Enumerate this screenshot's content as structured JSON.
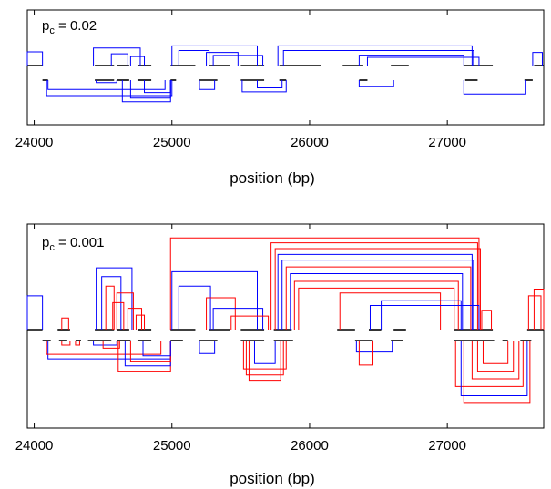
{
  "chart_data": [
    {
      "type": "arc-diagram",
      "annotation": {
        "base": "p",
        "sub": "c",
        "text": " = 0.02"
      },
      "xlabel": "position (bp)",
      "xlim": [
        23950,
        27700
      ],
      "xticks": [
        24000,
        25000,
        26000,
        27000
      ],
      "xtick_labels": [
        "24000",
        "25000",
        "26000",
        "27000"
      ],
      "colors": {
        "blue": "#0000ff",
        "red": "#ff0000",
        "axis": "#000000"
      },
      "upper_fragments": [
        [
          23950,
          24060
        ],
        [
          24440,
          24580
        ],
        [
          24600,
          24690
        ],
        [
          24750,
          24850
        ],
        [
          24990,
          25170
        ],
        [
          25270,
          25420
        ],
        [
          25500,
          25670
        ],
        [
          25780,
          26080
        ],
        [
          26240,
          26390
        ],
        [
          26590,
          26720
        ],
        [
          27120,
          27330
        ],
        [
          27630,
          27700
        ]
      ],
      "lower_fragments": [
        [
          24060,
          24100
        ],
        [
          24440,
          24580
        ],
        [
          24600,
          24690
        ],
        [
          24750,
          24850
        ],
        [
          24990,
          25030
        ],
        [
          25200,
          25330
        ],
        [
          25500,
          25670
        ],
        [
          25780,
          25830
        ],
        [
          26360,
          26420
        ],
        [
          27130,
          27220
        ],
        [
          27560,
          27620
        ]
      ],
      "upper_arcs": [
        [
          23950,
          24060,
          0.5,
          "blue"
        ],
        [
          24430,
          24770,
          0.36,
          "blue"
        ],
        [
          24560,
          24680,
          0.57,
          "blue"
        ],
        [
          24700,
          24800,
          0.67,
          "blue"
        ],
        [
          25000,
          25620,
          0.28,
          "blue"
        ],
        [
          25050,
          25270,
          0.45,
          "blue"
        ],
        [
          25250,
          25480,
          0.52,
          "blue"
        ],
        [
          25300,
          25660,
          0.63,
          "blue"
        ],
        [
          25770,
          27180,
          0.28,
          "blue"
        ],
        [
          25810,
          27190,
          0.45,
          "blue"
        ],
        [
          26360,
          27120,
          0.62,
          "blue"
        ],
        [
          26420,
          27230,
          0.7,
          "blue"
        ],
        [
          27620,
          27690,
          0.52,
          "blue"
        ]
      ],
      "lower_arcs": [
        [
          24100,
          24950,
          0.3,
          "blue"
        ],
        [
          24090,
          25000,
          0.5,
          "blue"
        ],
        [
          24450,
          24600,
          0.08,
          "blue"
        ],
        [
          24640,
          24990,
          0.7,
          "blue"
        ],
        [
          24700,
          24990,
          0.58,
          "blue"
        ],
        [
          24800,
          24990,
          0.4,
          "blue"
        ],
        [
          25200,
          25310,
          0.3,
          "blue"
        ],
        [
          25510,
          25830,
          0.38,
          "blue"
        ],
        [
          25620,
          25800,
          0.25,
          "blue"
        ],
        [
          26360,
          26610,
          0.2,
          "blue"
        ],
        [
          27120,
          27570,
          0.45,
          "blue"
        ]
      ]
    },
    {
      "type": "arc-diagram",
      "annotation": {
        "base": "p",
        "sub": "c",
        "text": " = 0.001"
      },
      "xlabel": "position (bp)",
      "xlim": [
        23950,
        27700
      ],
      "xticks": [
        24000,
        25000,
        26000,
        27000
      ],
      "xtick_labels": [
        "24000",
        "25000",
        "26000",
        "27000"
      ],
      "colors": {
        "blue": "#0000ff",
        "red": "#ff0000",
        "axis": "#000000"
      },
      "upper_fragments": [
        [
          23950,
          24060
        ],
        [
          24170,
          24260
        ],
        [
          24440,
          24580
        ],
        [
          24600,
          24690
        ],
        [
          24750,
          24850
        ],
        [
          24990,
          25170
        ],
        [
          25270,
          25420
        ],
        [
          25500,
          25670
        ],
        [
          25740,
          25870
        ],
        [
          26200,
          26330
        ],
        [
          26430,
          26520
        ],
        [
          26610,
          26700
        ],
        [
          27050,
          27330
        ],
        [
          27580,
          27700
        ]
      ],
      "lower_fragments": [
        [
          24060,
          24120
        ],
        [
          24180,
          24240
        ],
        [
          24300,
          24340
        ],
        [
          24390,
          24560
        ],
        [
          24600,
          24700
        ],
        [
          24750,
          24850
        ],
        [
          24990,
          25080
        ],
        [
          25200,
          25330
        ],
        [
          25500,
          25670
        ],
        [
          25740,
          25880
        ],
        [
          26330,
          26460
        ],
        [
          26590,
          26680
        ],
        [
          27050,
          27340
        ],
        [
          27400,
          27440
        ],
        [
          27530,
          27610
        ]
      ],
      "upper_arcs": [
        [
          23950,
          24060,
          0.65,
          "blue"
        ],
        [
          24200,
          24250,
          0.88,
          "red"
        ],
        [
          24450,
          24710,
          0.36,
          "blue"
        ],
        [
          24490,
          24630,
          0.45,
          "blue"
        ],
        [
          24520,
          24580,
          0.55,
          "red"
        ],
        [
          24570,
          24650,
          0.72,
          "red"
        ],
        [
          24600,
          24720,
          0.62,
          "red"
        ],
        [
          24680,
          24780,
          0.78,
          "red"
        ],
        [
          24740,
          24800,
          0.85,
          "red"
        ],
        [
          24990,
          27230,
          0.05,
          "red"
        ],
        [
          25000,
          25620,
          0.4,
          "blue"
        ],
        [
          25050,
          25280,
          0.55,
          "blue"
        ],
        [
          25250,
          25460,
          0.67,
          "red"
        ],
        [
          25300,
          25660,
          0.78,
          "blue"
        ],
        [
          25430,
          25700,
          0.86,
          "red"
        ],
        [
          25720,
          27220,
          0.1,
          "red"
        ],
        [
          25750,
          27240,
          0.16,
          "red"
        ],
        [
          25770,
          27180,
          0.22,
          "blue"
        ],
        [
          25800,
          27190,
          0.28,
          "blue"
        ],
        [
          25830,
          27170,
          0.35,
          "red"
        ],
        [
          25860,
          27110,
          0.42,
          "blue"
        ],
        [
          25890,
          27080,
          0.5,
          "red"
        ],
        [
          25920,
          27050,
          0.57,
          "red"
        ],
        [
          26220,
          26950,
          0.62,
          "red"
        ],
        [
          26520,
          27100,
          0.7,
          "blue"
        ],
        [
          26440,
          27230,
          0.75,
          "blue"
        ],
        [
          27250,
          27320,
          0.8,
          "red"
        ],
        [
          27590,
          27680,
          0.65,
          "red"
        ],
        [
          27630,
          27700,
          0.58,
          "red"
        ]
      ],
      "lower_arcs": [
        [
          24100,
          24990,
          0.24,
          "blue"
        ],
        [
          24090,
          24920,
          0.18,
          "red"
        ],
        [
          24200,
          24260,
          0.06,
          "red"
        ],
        [
          24300,
          24330,
          0.06,
          "red"
        ],
        [
          24430,
          24600,
          0.06,
          "blue"
        ],
        [
          24500,
          24620,
          0.1,
          "red"
        ],
        [
          24610,
          24990,
          0.4,
          "red"
        ],
        [
          24660,
          24990,
          0.33,
          "blue"
        ],
        [
          24700,
          24990,
          0.27,
          "red"
        ],
        [
          24790,
          24990,
          0.2,
          "blue"
        ],
        [
          25200,
          25310,
          0.17,
          "blue"
        ],
        [
          25520,
          25830,
          0.37,
          "red"
        ],
        [
          25540,
          25810,
          0.45,
          "red"
        ],
        [
          25560,
          25790,
          0.52,
          "red"
        ],
        [
          25600,
          25750,
          0.3,
          "blue"
        ],
        [
          26340,
          26600,
          0.15,
          "blue"
        ],
        [
          26360,
          26460,
          0.32,
          "red"
        ],
        [
          27060,
          27550,
          0.6,
          "red"
        ],
        [
          27100,
          27580,
          0.72,
          "blue"
        ],
        [
          27120,
          27600,
          0.82,
          "red"
        ],
        [
          27180,
          27520,
          0.5,
          "red"
        ],
        [
          27220,
          27480,
          0.4,
          "red"
        ],
        [
          27260,
          27440,
          0.3,
          "red"
        ]
      ]
    }
  ]
}
